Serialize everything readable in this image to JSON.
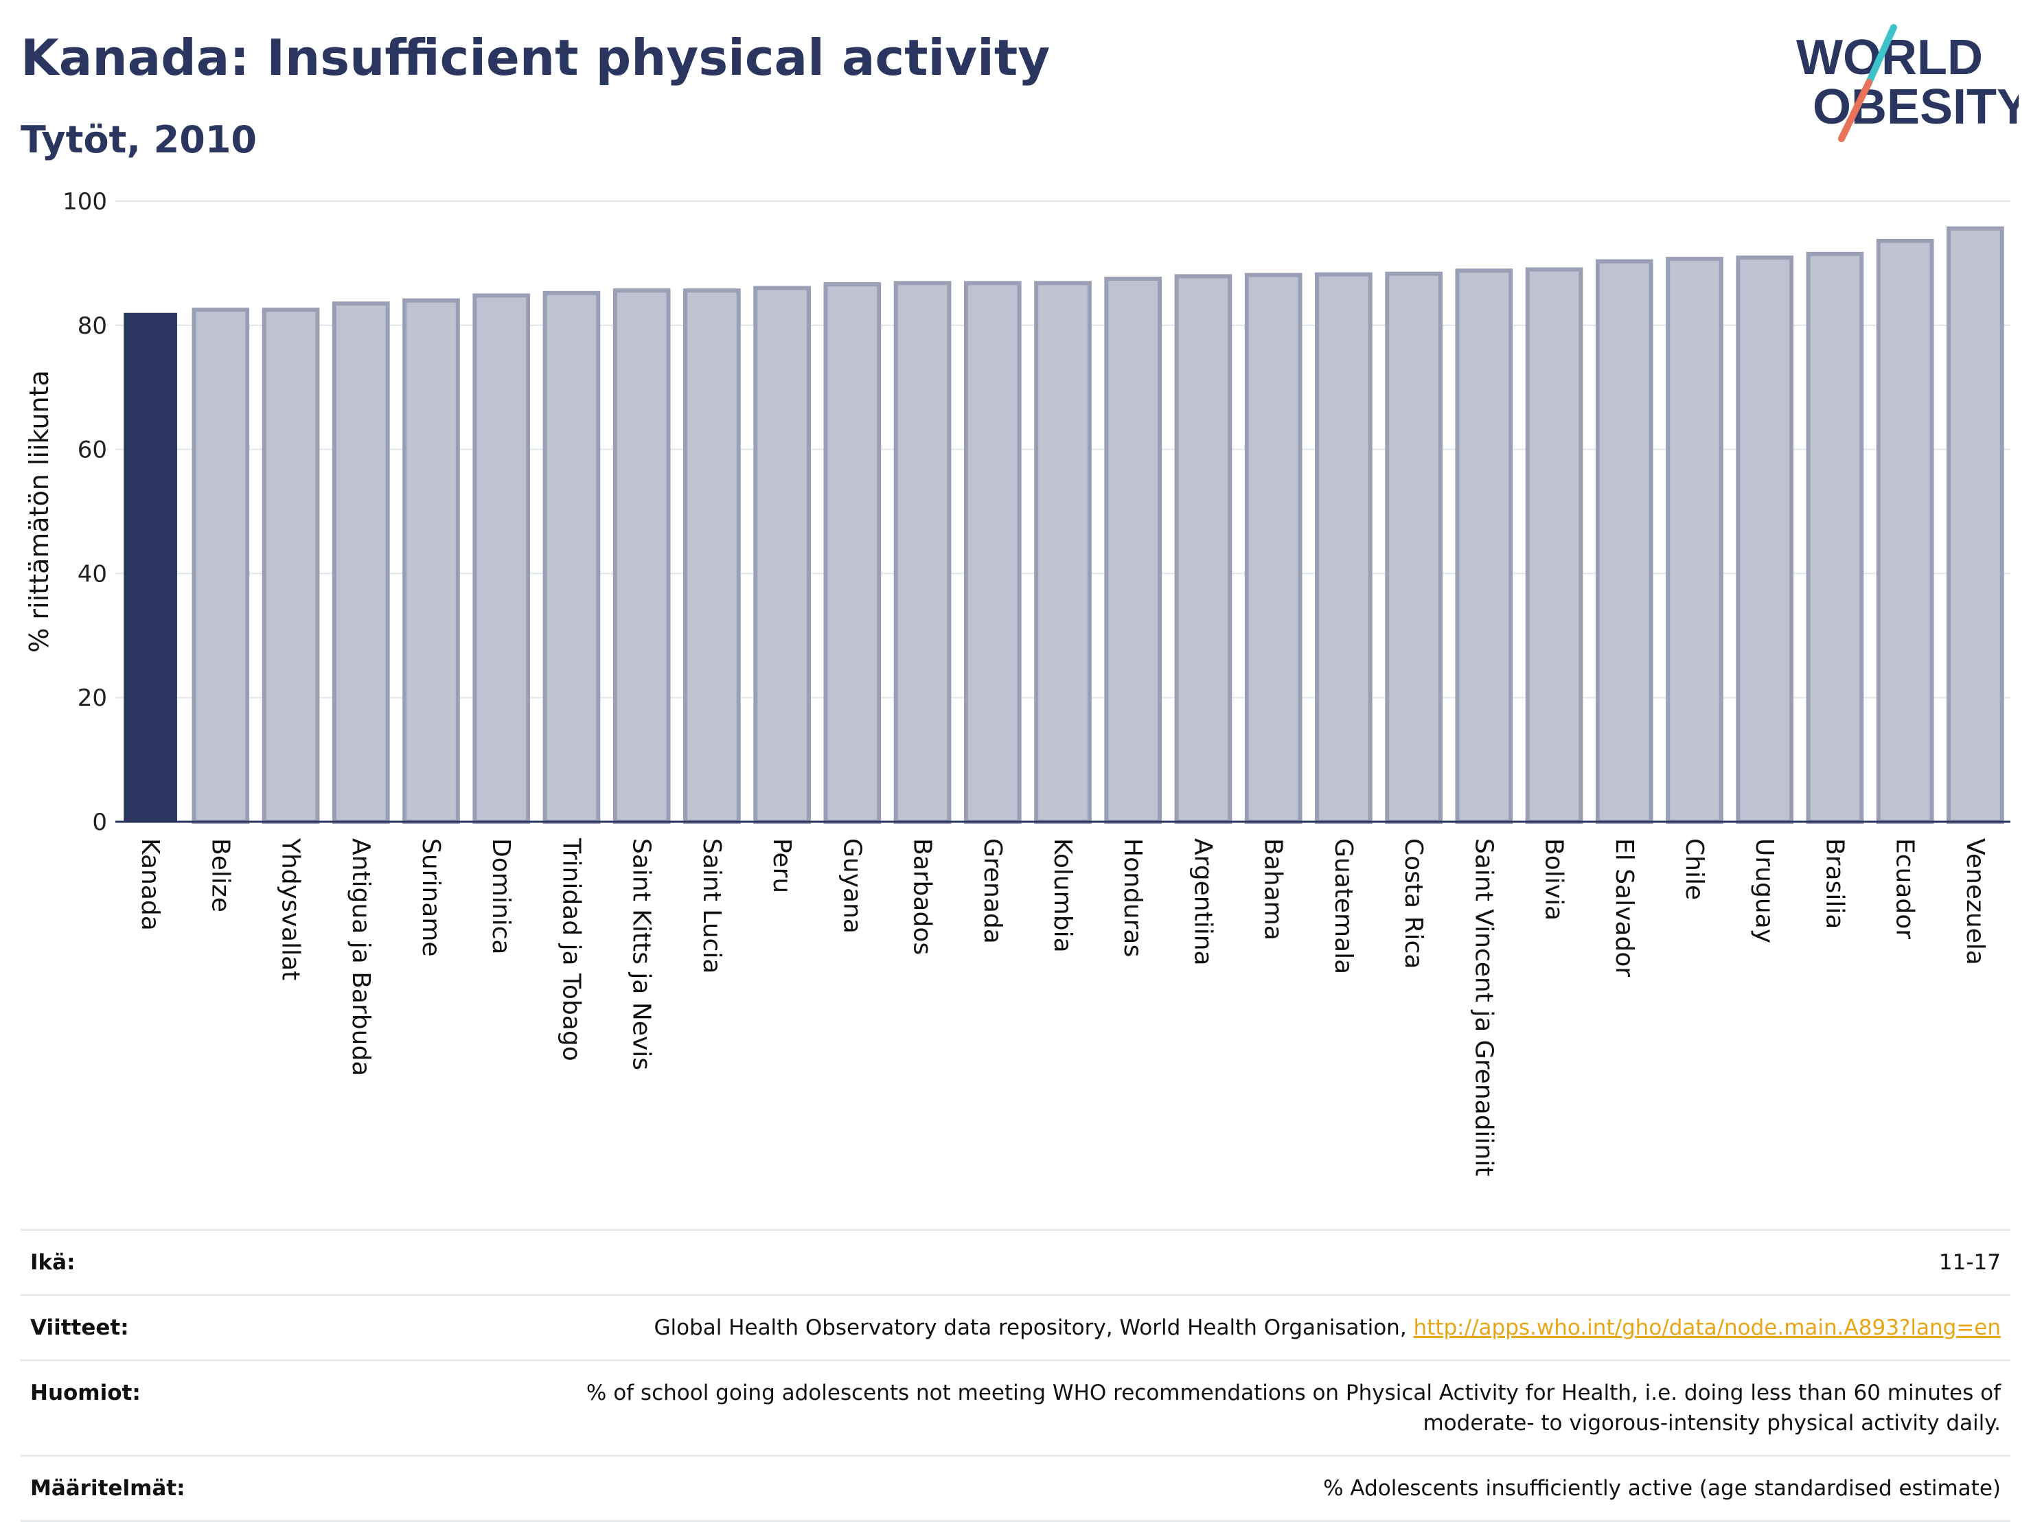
{
  "header": {
    "title": "Kanada: Insufficient physical activity",
    "subtitle": "Tytöt, 2010"
  },
  "logo": {
    "line1": "WORLD",
    "line2": "OBESITY"
  },
  "colors": {
    "highlight_bar": "#2b3660",
    "other_bar_fill": "#bfc2d0",
    "other_bar_stroke": "#9a9fb6",
    "text": "#2b3660",
    "link": "#e8a516",
    "logo_teal": "#3fc1c9",
    "logo_coral": "#e8735a"
  },
  "chart_data": {
    "type": "bar",
    "title": "Kanada: Insufficient physical activity",
    "subtitle": "Tytöt, 2010",
    "ylabel": "% riittämätön liikunta",
    "ylim": [
      0,
      100
    ],
    "yticks": [
      0,
      20,
      40,
      60,
      80,
      100
    ],
    "grid": true,
    "highlight": "Kanada",
    "categories": [
      "Kanada",
      "Belize",
      "Yhdysvallat",
      "Antigua ja Barbuda",
      "Suriname",
      "Dominica",
      "Trinidad ja Tobago",
      "Saint Kitts ja Nevis",
      "Saint Lucia",
      "Peru",
      "Guyana",
      "Barbados",
      "Grenada",
      "Kolumbia",
      "Honduras",
      "Argentiina",
      "Bahama",
      "Guatemala",
      "Costa Rica",
      "Saint Vincent ja Grenadiinit",
      "Bolivia",
      "El Salvador",
      "Chile",
      "Uruguay",
      "Brasilia",
      "Ecuador",
      "Venezuela"
    ],
    "values": [
      82.0,
      82.5,
      82.5,
      83.5,
      84.0,
      84.8,
      85.2,
      85.6,
      85.6,
      86.0,
      86.6,
      86.8,
      86.8,
      86.8,
      87.5,
      87.9,
      88.1,
      88.2,
      88.3,
      88.8,
      89.0,
      90.3,
      90.7,
      90.9,
      91.5,
      93.6,
      95.6
    ]
  },
  "info": [
    {
      "label": "Ikä:",
      "value": "11-17"
    },
    {
      "label": "Viitteet:",
      "value": "Global Health Observatory data repository, World Health Organisation, ",
      "link": "http://apps.who.int/gho/data/node.main.A893?lang=en"
    },
    {
      "label": "Huomiot:",
      "value": "% of school going adolescents not meeting WHO recommendations on Physical Activity for Health, i.e. doing less than 60 minutes of moderate- to vigorous-intensity physical activity daily."
    },
    {
      "label": "Määritelmät:",
      "value": "% Adolescents insufficiently active (age standardised estimate)"
    }
  ]
}
